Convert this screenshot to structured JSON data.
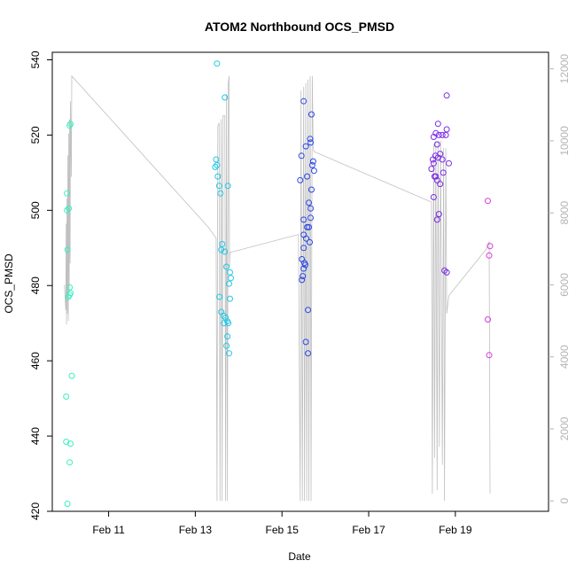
{
  "chart_data": {
    "type": "scatter",
    "title": "ATOM2 Northbound OCS_PMSD",
    "xlabel": "Date",
    "ylabel": "OCS_PMSD",
    "x_units": "days since Feb 10 00:00 (tick labels show dates)",
    "xlim": [
      -0.3,
      11.15
    ],
    "ylim": [
      420,
      542
    ],
    "y_ticks": [
      420,
      440,
      460,
      480,
      500,
      520,
      540
    ],
    "x_ticks": [
      {
        "x": 1,
        "label": "Feb 11"
      },
      {
        "x": 3,
        "label": "Feb 13"
      },
      {
        "x": 5,
        "label": "Feb 15"
      },
      {
        "x": 7,
        "label": "Feb 17"
      },
      {
        "x": 9,
        "label": "Feb 19"
      }
    ],
    "y2_ticks": [
      0,
      2000,
      4000,
      6000,
      8000,
      10000,
      12000
    ],
    "y2lim": [
      -290,
      12460
    ],
    "grid": false,
    "colors": {
      "day1": "#38f0c0",
      "day2": "#22c8e8",
      "day3": "#2a48e6",
      "day4": "#7a2ae6",
      "day5": "#d838d8",
      "line": "#c0c0c0",
      "axis": "#000000",
      "secondary_axis": "#b4b4b4"
    },
    "series": [
      {
        "color_key": "day1",
        "points": [
          [
            0.05,
            422
          ],
          [
            0.02,
            438.5
          ],
          [
            0.02,
            450.5
          ],
          [
            0.1,
            433
          ],
          [
            0.12,
            438
          ],
          [
            0.15,
            456
          ],
          [
            0.05,
            489.5
          ],
          [
            0.07,
            477
          ],
          [
            0.1,
            477.5
          ],
          [
            0.1,
            479.5
          ],
          [
            0.12,
            478
          ],
          [
            0.04,
            500
          ],
          [
            0.04,
            504.5
          ],
          [
            0.08,
            500.5
          ],
          [
            0.1,
            522.5
          ],
          [
            0.12,
            523
          ]
        ]
      },
      {
        "color_key": "day2",
        "points": [
          [
            3.5,
            539
          ],
          [
            3.68,
            530
          ],
          [
            3.48,
            513.5
          ],
          [
            3.46,
            511.5
          ],
          [
            3.5,
            512
          ],
          [
            3.52,
            509
          ],
          [
            3.55,
            506.5
          ],
          [
            3.58,
            504.5
          ],
          [
            3.75,
            506.5
          ],
          [
            3.62,
            491
          ],
          [
            3.6,
            489.5
          ],
          [
            3.68,
            489
          ],
          [
            3.72,
            485
          ],
          [
            3.8,
            483.5
          ],
          [
            3.82,
            482
          ],
          [
            3.78,
            480.5
          ],
          [
            3.56,
            477
          ],
          [
            3.6,
            473
          ],
          [
            3.65,
            472
          ],
          [
            3.7,
            471.5
          ],
          [
            3.74,
            470.5
          ],
          [
            3.66,
            470
          ],
          [
            3.76,
            470
          ],
          [
            3.8,
            476.5
          ],
          [
            3.74,
            466.5
          ],
          [
            3.72,
            464
          ],
          [
            3.78,
            462
          ]
        ]
      },
      {
        "color_key": "day3",
        "points": [
          [
            5.5,
            529
          ],
          [
            5.68,
            525.5
          ],
          [
            5.65,
            519
          ],
          [
            5.66,
            518
          ],
          [
            5.55,
            517
          ],
          [
            5.45,
            514.5
          ],
          [
            5.72,
            513
          ],
          [
            5.7,
            512
          ],
          [
            5.74,
            510.5
          ],
          [
            5.58,
            509
          ],
          [
            5.42,
            508
          ],
          [
            5.68,
            505.5
          ],
          [
            5.62,
            502
          ],
          [
            5.66,
            500.5
          ],
          [
            5.5,
            497.5
          ],
          [
            5.66,
            498
          ],
          [
            5.58,
            495.5
          ],
          [
            5.62,
            495.5
          ],
          [
            5.5,
            493.5
          ],
          [
            5.56,
            492.5
          ],
          [
            5.64,
            491.5
          ],
          [
            5.5,
            490
          ],
          [
            5.46,
            487
          ],
          [
            5.52,
            486
          ],
          [
            5.54,
            485.5
          ],
          [
            5.5,
            484.5
          ],
          [
            5.48,
            482.5
          ],
          [
            5.46,
            481.5
          ],
          [
            5.6,
            473.5
          ],
          [
            5.55,
            465
          ],
          [
            5.6,
            462
          ]
        ]
      },
      {
        "color_key": "day4",
        "points": [
          [
            8.8,
            530.5
          ],
          [
            8.6,
            523
          ],
          [
            8.8,
            521.5
          ],
          [
            8.55,
            520.5
          ],
          [
            8.62,
            520
          ],
          [
            8.7,
            520
          ],
          [
            8.78,
            520
          ],
          [
            8.5,
            519.5
          ],
          [
            8.58,
            517.5
          ],
          [
            8.54,
            514.5
          ],
          [
            8.65,
            515
          ],
          [
            8.6,
            514
          ],
          [
            8.48,
            513.5
          ],
          [
            8.7,
            513.5
          ],
          [
            8.5,
            512.5
          ],
          [
            8.85,
            512.5
          ],
          [
            8.45,
            511
          ],
          [
            8.72,
            510
          ],
          [
            8.52,
            509
          ],
          [
            8.55,
            509
          ],
          [
            8.58,
            508
          ],
          [
            8.65,
            507
          ],
          [
            8.5,
            503.5
          ],
          [
            8.62,
            499
          ],
          [
            8.58,
            497.5
          ],
          [
            8.75,
            484
          ],
          [
            8.8,
            483.5
          ]
        ]
      },
      {
        "color_key": "day5",
        "points": [
          [
            9.75,
            502.5
          ],
          [
            9.8,
            490.5
          ],
          [
            9.78,
            488
          ],
          [
            9.75,
            471
          ],
          [
            9.78,
            461.5
          ]
        ]
      }
    ],
    "secondary_line": {
      "axis": "right",
      "description": "grey trace plotted against the right axis",
      "points": [
        [
          -0.02,
          6000
        ],
        [
          0.01,
          5300
        ],
        [
          0.02,
          7700
        ],
        [
          0.03,
          4900
        ],
        [
          0.04,
          8400
        ],
        [
          0.05,
          5200
        ],
        [
          0.06,
          9600
        ],
        [
          0.07,
          5000
        ],
        [
          0.08,
          10200
        ],
        [
          0.09,
          5800
        ],
        [
          0.1,
          10600
        ],
        [
          0.11,
          6600
        ],
        [
          0.12,
          11100
        ],
        [
          0.14,
          9000
        ],
        [
          0.15,
          11800
        ],
        [
          3.3,
          7600
        ],
        [
          3.48,
          7300
        ],
        [
          3.5,
          0
        ],
        [
          3.52,
          10400
        ],
        [
          3.55,
          10500
        ],
        [
          3.57,
          0
        ],
        [
          3.6,
          10600
        ],
        [
          3.62,
          0
        ],
        [
          3.64,
          10700
        ],
        [
          3.68,
          10700
        ],
        [
          3.7,
          0
        ],
        [
          3.72,
          11300
        ],
        [
          3.74,
          0
        ],
        [
          3.76,
          11600
        ],
        [
          3.78,
          11800
        ],
        [
          3.79,
          6500
        ],
        [
          3.8,
          6900
        ],
        [
          5.38,
          7400
        ],
        [
          5.42,
          0
        ],
        [
          5.44,
          11400
        ],
        [
          5.47,
          0
        ],
        [
          5.5,
          11500
        ],
        [
          5.52,
          0
        ],
        [
          5.55,
          11600
        ],
        [
          5.57,
          0
        ],
        [
          5.6,
          11700
        ],
        [
          5.62,
          0
        ],
        [
          5.65,
          11800
        ],
        [
          5.67,
          0
        ],
        [
          5.7,
          11800
        ],
        [
          5.72,
          9800
        ],
        [
          5.74,
          9700
        ],
        [
          8.45,
          8300
        ],
        [
          8.47,
          200
        ],
        [
          8.5,
          9900
        ],
        [
          8.52,
          1200
        ],
        [
          8.55,
          10000
        ],
        [
          8.58,
          300
        ],
        [
          8.6,
          10000
        ],
        [
          8.63,
          1500
        ],
        [
          8.66,
          10000
        ],
        [
          8.7,
          1000
        ],
        [
          8.73,
          9800
        ],
        [
          8.75,
          0
        ],
        [
          8.78,
          9800
        ],
        [
          8.8,
          5200
        ],
        [
          8.85,
          5700
        ],
        [
          9.72,
          7000
        ],
        [
          9.74,
          7100
        ],
        [
          9.78,
          7200
        ],
        [
          9.8,
          200
        ]
      ]
    }
  }
}
